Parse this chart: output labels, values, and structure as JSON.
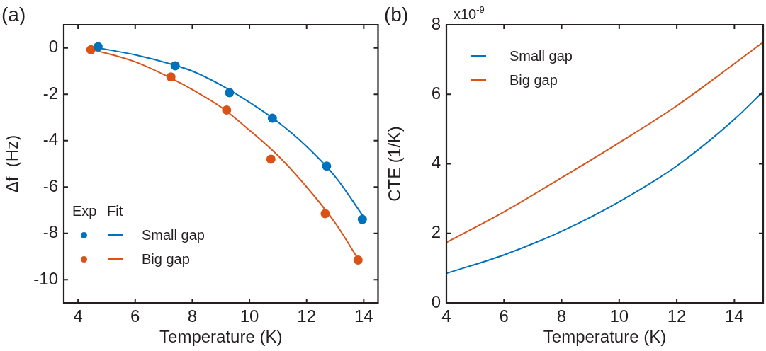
{
  "chart_data": [
    {
      "type": "line",
      "title": "(a)",
      "xlabel": "Temperature (K)",
      "ylabel": "Δf  (Hz)",
      "xlim": [
        3.5,
        14.5
      ],
      "ylim": [
        -11,
        1
      ],
      "xticks": [
        4,
        6,
        8,
        10,
        12,
        14
      ],
      "yticks": [
        0,
        -2,
        -4,
        -6,
        -8,
        -10
      ],
      "legend": "bottom left",
      "annotations": [
        "Exp",
        "Fit"
      ],
      "series": [
        {
          "type": "scatter",
          "marker": "circle",
          "color": "#0072bd",
          "x": [
            4.7,
            7.4,
            9.3,
            10.8,
            12.7,
            13.95
          ],
          "values": [
            0.05,
            -0.77,
            -1.93,
            -3.03,
            -5.1,
            -7.4
          ]
        },
        {
          "type": "scatter",
          "marker": "circle",
          "color": "#d95319",
          "x": [
            4.45,
            7.25,
            9.2,
            10.75,
            12.65,
            13.8
          ],
          "values": [
            -0.08,
            -1.25,
            -2.68,
            -4.8,
            -7.15,
            -9.15
          ]
        },
        {
          "type": "line",
          "name": "Small gap",
          "color": "#0072bd",
          "x": [
            4.7,
            6,
            7.4,
            8,
            9,
            10,
            11,
            12,
            13,
            14
          ],
          "values": [
            0,
            -0.3,
            -0.75,
            -1.0,
            -1.6,
            -2.35,
            -3.2,
            -4.25,
            -5.55,
            -7.3
          ]
        },
        {
          "type": "line",
          "name": "Big gap",
          "color": "#d95319",
          "x": [
            4.45,
            6,
            7.25,
            8,
            9,
            10,
            11,
            12,
            13,
            13.8
          ],
          "values": [
            -0.05,
            -0.6,
            -1.3,
            -1.8,
            -2.55,
            -3.55,
            -4.65,
            -6.0,
            -7.55,
            -9.1
          ]
        }
      ]
    },
    {
      "type": "line",
      "title": "(b)",
      "xlabel": "Temperature (K)",
      "ylabel": "CTE (1/K)",
      "xlim": [
        4,
        15
      ],
      "ylim": [
        0,
        8
      ],
      "xticks": [
        4,
        6,
        8,
        10,
        12,
        14
      ],
      "yticks": [
        0,
        2,
        4,
        6,
        8
      ],
      "legend": "top left",
      "annotations": [
        "x10$^{-9}$"
      ],
      "series": [
        {
          "name": "Small gap",
          "color": "#0072bd",
          "x": [
            4,
            6,
            8,
            10,
            12,
            14,
            15
          ],
          "values": [
            0.85,
            1.38,
            2.06,
            2.91,
            3.94,
            5.28,
            6.08
          ]
        },
        {
          "name": "Big gap",
          "color": "#d95319",
          "x": [
            4,
            6,
            8,
            10,
            12,
            14,
            15
          ],
          "values": [
            1.74,
            2.62,
            3.6,
            4.61,
            5.67,
            6.88,
            7.5
          ]
        }
      ]
    }
  ]
}
